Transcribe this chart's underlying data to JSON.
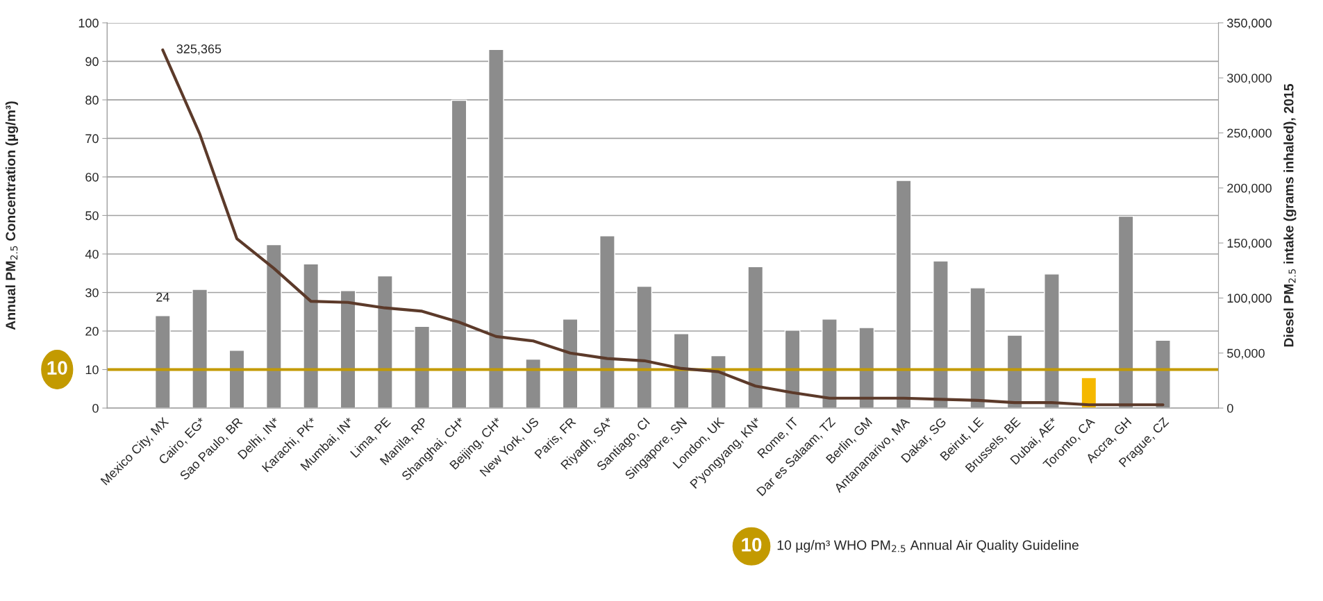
{
  "chart_data": {
    "type": "bar",
    "ylabel": "Annual PM$_{2.5}$ Concentration (µg/m³)",
    "y2label": "Diesel PM$_{2.5}$ intake (grams inhaled), 2015",
    "categories": [
      null,
      "Mexico City, MX",
      "Cairo, EG*",
      "Sao Paulo, BR",
      "Delhi, IN*",
      "Karachi, PK*",
      "Mumbai, IN*",
      "Lima, PE",
      "Manila, RP",
      "Shanghai, CH*",
      "Beijing, CH*",
      "New York, US",
      "Paris, FR",
      "Riyadh, SA*",
      "Santiago, CI",
      "Singapore, SN",
      "London, UK",
      "P'yongyang, KN*",
      "Rome, IT",
      "Dar es Salaam, TZ",
      "Berlin, GM",
      "Antananarivo, MA",
      "Dakar, SG",
      "Beirut, LE",
      "Brussels, BE",
      "Dubai, AE*",
      "Toronto, CA",
      "Accra, GH",
      "Prague, CZ",
      null
    ],
    "series": [
      {
        "colors": [
          "#8c8c8c",
          "#8c8c8c",
          "#8c8c8c",
          "#8c8c8c",
          "#8c8c8c",
          "#8c8c8c",
          "#8c8c8c",
          "#8c8c8c",
          "#8c8c8c",
          "#8c8c8c",
          "#8c8c8c",
          "#8c8c8c",
          "#8c8c8c",
          "#8c8c8c",
          "#8c8c8c",
          "#8c8c8c",
          "#8c8c8c",
          "#8c8c8c",
          "#8c8c8c",
          "#8c8c8c",
          "#8c8c8c",
          "#8c8c8c",
          "#8c8c8c",
          "#8c8c8c",
          "#8c8c8c",
          "#8c8c8c",
          "#f5b800",
          "#8c8c8c",
          "#8c8c8c",
          "#8c8c8c"
        ],
        "values": [
          null,
          24,
          30.8,
          15.0,
          42.4,
          37.4,
          30.5,
          34.3,
          21.2,
          79.9,
          93.1,
          12.7,
          23.1,
          44.7,
          31.6,
          19.3,
          13.6,
          36.7,
          20.2,
          23.1,
          20.9,
          59.1,
          38.2,
          31.2,
          18.9,
          34.8,
          7.9,
          49.8,
          17.6,
          null
        ],
        "value_labels": [
          null,
          "24",
          null,
          null,
          null,
          null,
          null,
          null,
          null,
          null,
          null,
          null,
          null,
          null,
          null,
          null,
          null,
          null,
          null,
          null,
          null,
          null,
          null,
          null,
          null,
          null,
          null,
          null,
          null,
          null
        ]
      },
      {
        "type": "line",
        "axis": "y2",
        "color": "#5c3a2a",
        "values": [
          null,
          325365,
          249000,
          154000,
          127000,
          97000,
          96000,
          91000,
          88000,
          78000,
          65000,
          61000,
          50000,
          45000,
          43000,
          36000,
          33000,
          20000,
          14000,
          9000,
          9000,
          9000,
          8000,
          7000,
          5000,
          5000,
          3000,
          3000,
          3000,
          null
        ],
        "value_labels": [
          null,
          "325,365",
          null,
          null,
          null,
          null,
          null,
          null,
          null,
          null,
          null,
          null,
          null,
          null,
          null,
          null,
          null,
          null,
          null,
          null,
          null,
          null,
          null,
          null,
          null,
          null,
          null,
          null,
          null,
          null
        ]
      }
    ],
    "ylim": [
      0,
      100
    ],
    "yticks": [
      0,
      10,
      20,
      30,
      40,
      50,
      60,
      70,
      80,
      90,
      100
    ],
    "y2lim": [
      0,
      350000
    ],
    "y2ticks": [
      {
        "value": 0,
        "label": "0"
      },
      {
        "value": 50000,
        "label": "50,000"
      },
      {
        "value": 100000,
        "label": "100,000"
      },
      {
        "value": 150000,
        "label": "150,000"
      },
      {
        "value": 200000,
        "label": "200,000"
      },
      {
        "value": 250000,
        "label": "250,000"
      },
      {
        "value": 300000,
        "label": "300,000"
      },
      {
        "value": 350000,
        "label": "350,000"
      }
    ],
    "ref_lines": [
      {
        "axis": "y",
        "value": 10,
        "label": "10",
        "color": "#c39a00"
      }
    ],
    "annotations": [
      "10 µg/m³ WHO PM$_{2.5}$ Annual Air Quality Guideline"
    ],
    "grid": "y",
    "legend": false,
    "marker": "none",
    "line_style": "solid"
  }
}
